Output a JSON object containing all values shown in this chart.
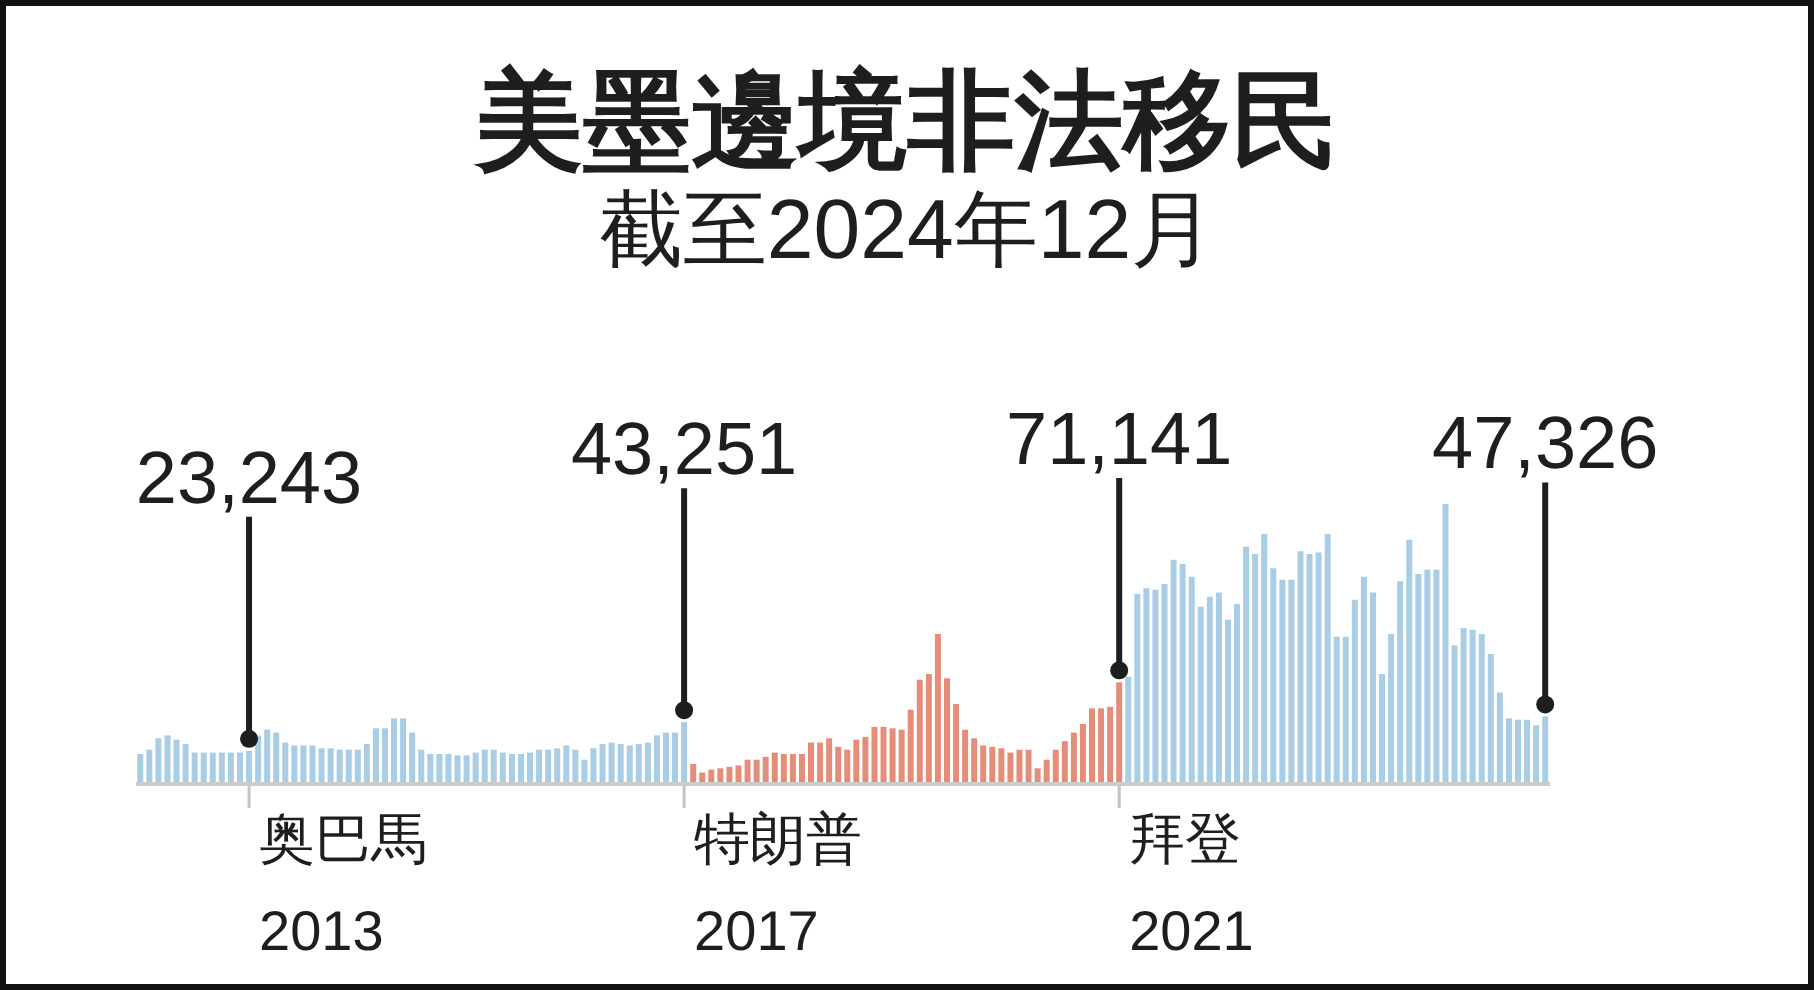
{
  "chart_data": {
    "type": "bar",
    "title": "美墨邊境非法移民",
    "subtitle": "截至2024年12月",
    "categories": [
      null,
      null,
      null,
      null,
      null,
      null,
      null,
      null,
      null,
      null,
      null,
      null,
      null,
      null,
      null,
      null,
      null,
      null,
      null,
      null,
      null,
      null,
      null,
      null,
      null,
      null,
      null,
      null,
      null,
      null,
      null,
      null,
      null,
      null,
      null,
      null,
      null,
      null,
      null,
      null,
      null,
      null,
      null,
      null,
      null,
      null,
      null,
      null,
      null,
      null,
      null,
      null,
      null,
      null,
      null,
      null,
      null,
      null,
      null,
      null,
      null,
      null,
      null,
      null,
      null,
      null,
      null,
      null,
      null,
      null,
      null,
      null,
      null,
      null,
      null,
      null,
      null,
      null,
      null,
      null,
      null,
      null,
      null,
      null,
      null,
      null,
      null,
      null,
      null,
      null,
      null,
      null,
      null,
      null,
      null,
      null,
      null,
      null,
      null,
      null,
      null,
      null,
      null,
      null,
      null,
      null,
      null,
      null,
      null,
      null,
      null,
      null,
      null,
      null,
      null,
      null,
      null,
      null,
      null,
      null,
      null,
      null,
      null,
      null,
      null,
      null,
      null,
      null,
      null,
      null,
      null,
      null,
      null,
      null,
      null,
      null,
      null,
      null,
      null,
      null,
      null,
      null,
      null,
      null,
      null,
      null,
      null,
      null,
      null,
      null,
      null,
      null,
      null,
      null,
      null,
      null
    ],
    "values": [
      21000,
      24000,
      32000,
      34000,
      31000,
      28000,
      22000,
      22000,
      22000,
      22000,
      22000,
      22000,
      23243,
      34000,
      38000,
      36000,
      29000,
      27000,
      27000,
      27000,
      25000,
      25000,
      24000,
      24000,
      24000,
      28000,
      39000,
      39000,
      46000,
      46000,
      36000,
      24000,
      21000,
      21000,
      21000,
      20000,
      20000,
      22000,
      24000,
      24000,
      22000,
      21000,
      21000,
      22000,
      24000,
      24000,
      25000,
      27000,
      24000,
      17000,
      25000,
      28000,
      29000,
      28000,
      27000,
      28000,
      29000,
      34000,
      36000,
      36000,
      43251,
      14000,
      8000,
      10000,
      11000,
      12000,
      13000,
      17000,
      17000,
      19000,
      22000,
      21000,
      21000,
      21000,
      29000,
      29000,
      32000,
      26000,
      24000,
      31000,
      33000,
      40000,
      40000,
      39000,
      38000,
      52000,
      73000,
      77000,
      105000,
      74000,
      56000,
      38000,
      32000,
      27000,
      26000,
      25000,
      22000,
      24000,
      24000,
      11000,
      17000,
      24000,
      30000,
      36000,
      42000,
      53000,
      53000,
      54000,
      71141,
      75000,
      133000,
      137000,
      136000,
      140000,
      157000,
      154000,
      145000,
      124000,
      131000,
      134000,
      115000,
      126000,
      166000,
      161000,
      175000,
      151000,
      143000,
      143000,
      163000,
      161000,
      162000,
      175000,
      103000,
      103000,
      129000,
      145000,
      134000,
      77000,
      105000,
      142000,
      171000,
      147000,
      150000,
      150000,
      196000,
      97000,
      109000,
      108000,
      105000,
      91000,
      64000,
      46000,
      45000,
      45000,
      41000,
      47326
    ],
    "colors": [
      "#a8cde4",
      "#a8cde4",
      "#a8cde4",
      "#a8cde4",
      "#a8cde4",
      "#a8cde4",
      "#a8cde4",
      "#a8cde4",
      "#a8cde4",
      "#a8cde4",
      "#a8cde4",
      "#a8cde4",
      "#a8cde4",
      "#a8cde4",
      "#a8cde4",
      "#a8cde4",
      "#a8cde4",
      "#a8cde4",
      "#a8cde4",
      "#a8cde4",
      "#a8cde4",
      "#a8cde4",
      "#a8cde4",
      "#a8cde4",
      "#a8cde4",
      "#a8cde4",
      "#a8cde4",
      "#a8cde4",
      "#a8cde4",
      "#a8cde4",
      "#a8cde4",
      "#a8cde4",
      "#a8cde4",
      "#a8cde4",
      "#a8cde4",
      "#a8cde4",
      "#a8cde4",
      "#a8cde4",
      "#a8cde4",
      "#a8cde4",
      "#a8cde4",
      "#a8cde4",
      "#a8cde4",
      "#a8cde4",
      "#a8cde4",
      "#a8cde4",
      "#a8cde4",
      "#a8cde4",
      "#a8cde4",
      "#a8cde4",
      "#a8cde4",
      "#a8cde4",
      "#a8cde4",
      "#a8cde4",
      "#a8cde4",
      "#a8cde4",
      "#a8cde4",
      "#a8cde4",
      "#a8cde4",
      "#a8cde4",
      "#a8cde4",
      "#e68d7a",
      "#e68d7a",
      "#e68d7a",
      "#e68d7a",
      "#e68d7a",
      "#e68d7a",
      "#e68d7a",
      "#e68d7a",
      "#e68d7a",
      "#e68d7a",
      "#e68d7a",
      "#e68d7a",
      "#e68d7a",
      "#e68d7a",
      "#e68d7a",
      "#e68d7a",
      "#e68d7a",
      "#e68d7a",
      "#e68d7a",
      "#e68d7a",
      "#e68d7a",
      "#e68d7a",
      "#e68d7a",
      "#e68d7a",
      "#e68d7a",
      "#e68d7a",
      "#e68d7a",
      "#e68d7a",
      "#e68d7a",
      "#e68d7a",
      "#e68d7a",
      "#e68d7a",
      "#e68d7a",
      "#e68d7a",
      "#e68d7a",
      "#e68d7a",
      "#e68d7a",
      "#e68d7a",
      "#e68d7a",
      "#e68d7a",
      "#e68d7a",
      "#e68d7a",
      "#e68d7a",
      "#e68d7a",
      "#e68d7a",
      "#e68d7a",
      "#e68d7a",
      "#e68d7a",
      "#a8cde4",
      "#a8cde4",
      "#a8cde4",
      "#a8cde4",
      "#a8cde4",
      "#a8cde4",
      "#a8cde4",
      "#a8cde4",
      "#a8cde4",
      "#a8cde4",
      "#a8cde4",
      "#a8cde4",
      "#a8cde4",
      "#a8cde4",
      "#a8cde4",
      "#a8cde4",
      "#a8cde4",
      "#a8cde4",
      "#a8cde4",
      "#a8cde4",
      "#a8cde4",
      "#a8cde4",
      "#a8cde4",
      "#a8cde4",
      "#a8cde4",
      "#a8cde4",
      "#a8cde4",
      "#a8cde4",
      "#a8cde4",
      "#a8cde4",
      "#a8cde4",
      "#a8cde4",
      "#a8cde4",
      "#a8cde4",
      "#a8cde4",
      "#a8cde4",
      "#a8cde4",
      "#a8cde4",
      "#a8cde4",
      "#a8cde4",
      "#a8cde4",
      "#a8cde4",
      "#a8cde4",
      "#a8cde4",
      "#a8cde4",
      "#a8cde4",
      "#a8cde4"
    ],
    "value_labels": [
      null,
      null,
      null,
      null,
      null,
      null,
      null,
      null,
      null,
      null,
      null,
      null,
      "23,243",
      null,
      null,
      null,
      null,
      null,
      null,
      null,
      null,
      null,
      null,
      null,
      null,
      null,
      null,
      null,
      null,
      null,
      null,
      null,
      null,
      null,
      null,
      null,
      null,
      null,
      null,
      null,
      null,
      null,
      null,
      null,
      null,
      null,
      null,
      null,
      null,
      null,
      null,
      null,
      null,
      null,
      null,
      null,
      null,
      null,
      null,
      null,
      "43,251",
      null,
      null,
      null,
      null,
      null,
      null,
      null,
      null,
      null,
      null,
      null,
      null,
      null,
      null,
      null,
      null,
      null,
      null,
      null,
      null,
      null,
      null,
      null,
      null,
      null,
      null,
      null,
      null,
      null,
      null,
      null,
      null,
      null,
      null,
      null,
      null,
      null,
      null,
      null,
      null,
      null,
      null,
      null,
      null,
      null,
      null,
      null,
      "71,141",
      null,
      null,
      null,
      null,
      null,
      null,
      null,
      null,
      null,
      null,
      null,
      null,
      null,
      null,
      null,
      null,
      null,
      null,
      null,
      null,
      null,
      null,
      null,
      null,
      null,
      null,
      null,
      null,
      null,
      null,
      null,
      null,
      null,
      null,
      null,
      null,
      null,
      null,
      null,
      null,
      null,
      null,
      null,
      null,
      null,
      null,
      "47,326"
    ],
    "annotations": [
      "奥巴馬\n2013",
      "特朗普\n2017",
      "拜登\n2021"
    ]
  }
}
